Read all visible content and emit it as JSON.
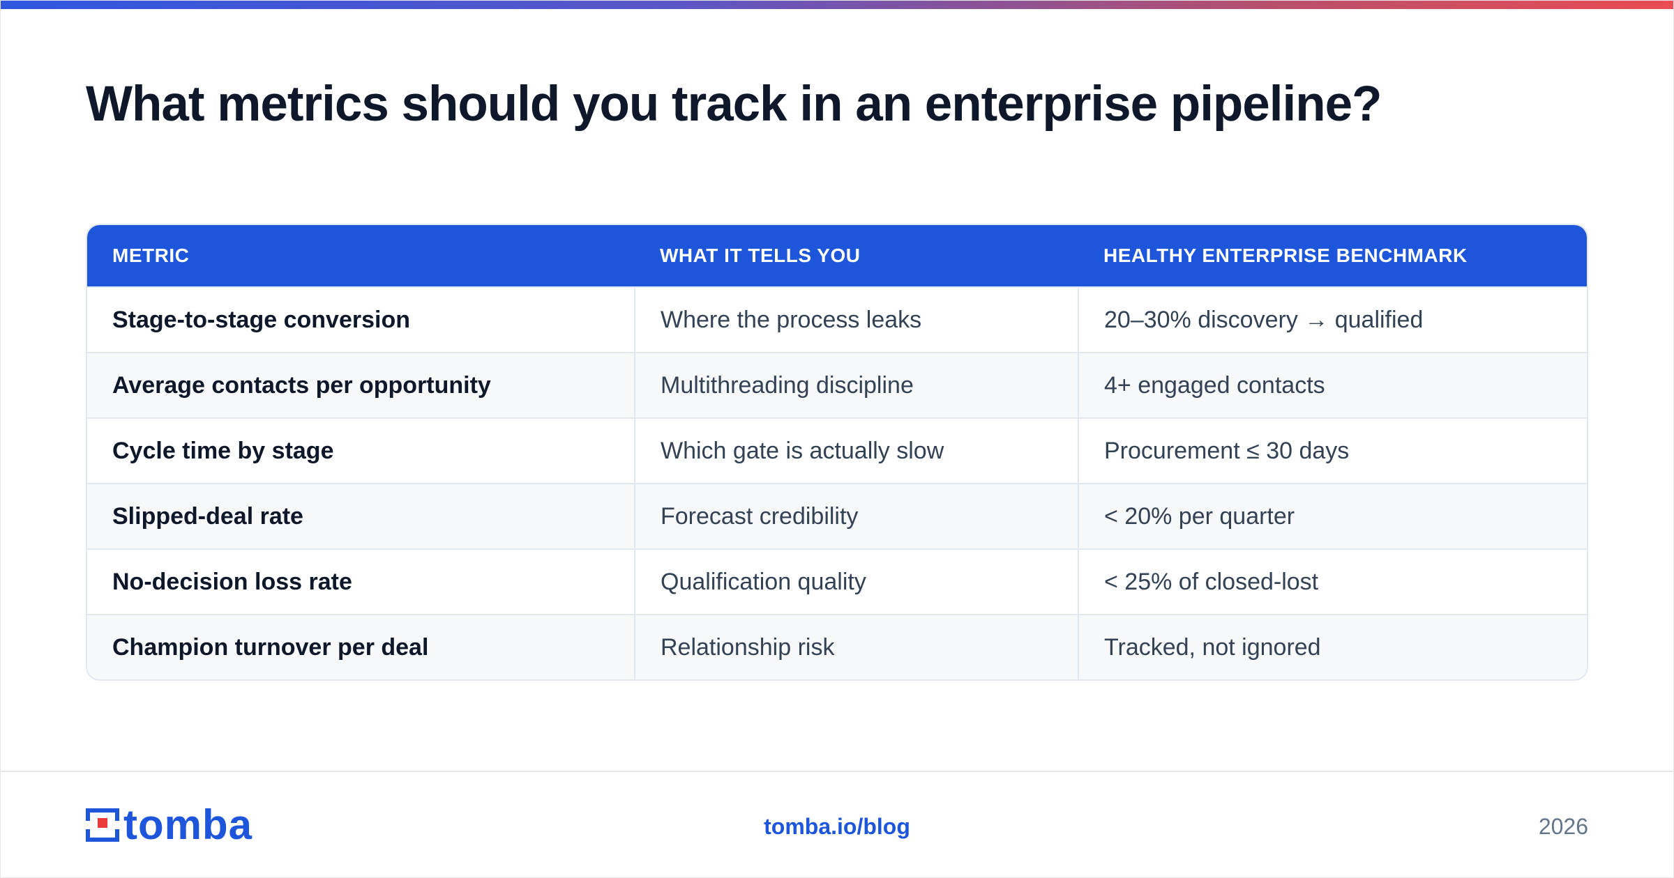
{
  "title": "What metrics should you track in an enterprise pipeline?",
  "colors": {
    "accent": "#1d56db",
    "title_text": "#0f172a",
    "body_text": "#334155",
    "gradient": [
      "#2f57e0",
      "#ea4c52"
    ]
  },
  "table": {
    "headers": [
      "METRIC",
      "WHAT IT TELLS YOU",
      "HEALTHY ENTERPRISE BENCHMARK"
    ],
    "rows": [
      [
        "Stage-to-stage conversion",
        "Where the process leaks",
        "20–30% discovery → qualified"
      ],
      [
        "Average contacts per opportunity",
        "Multithreading discipline",
        "4+ engaged contacts"
      ],
      [
        "Cycle time by stage",
        "Which gate is actually slow",
        "Procurement ≤ 30 days"
      ],
      [
        "Slipped-deal rate",
        "Forecast credibility",
        "< 20% per quarter"
      ],
      [
        "No-decision loss rate",
        "Qualification quality",
        "< 25% of closed-lost"
      ],
      [
        "Champion turnover per deal",
        "Relationship risk",
        "Tracked, not ignored"
      ]
    ]
  },
  "footer": {
    "logo_text": "tomba",
    "logo_icon": "tomba-logo-icon",
    "link": "tomba.io/blog",
    "year": "2026"
  }
}
